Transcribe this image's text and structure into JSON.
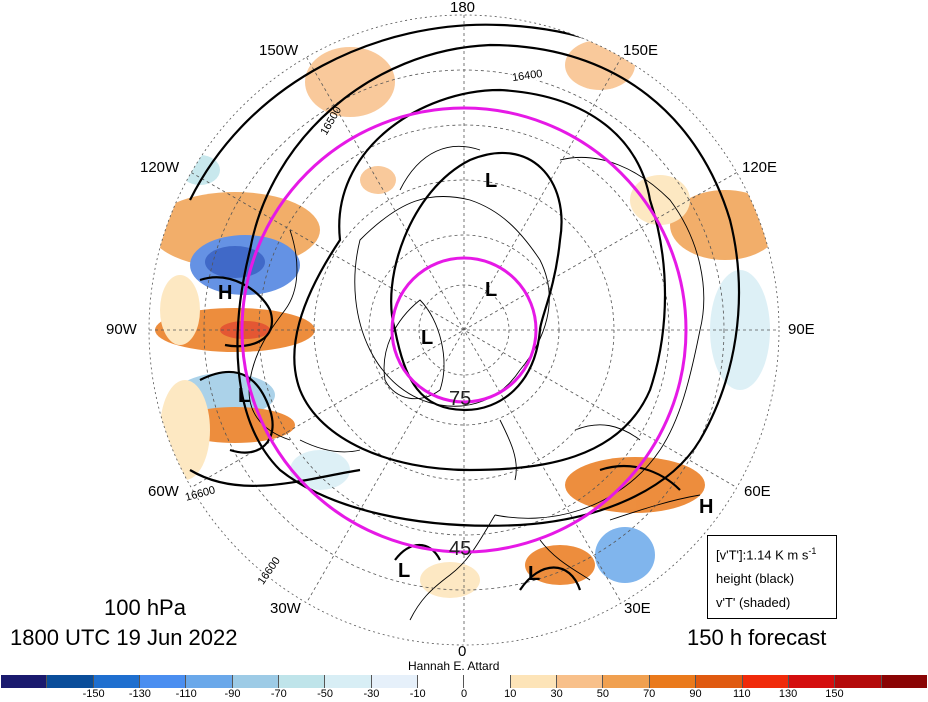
{
  "longitude_labels": [
    {
      "text": "180"
    },
    {
      "text": "150W"
    },
    {
      "text": "150E"
    },
    {
      "text": "120W"
    },
    {
      "text": "120E"
    },
    {
      "text": "90W"
    },
    {
      "text": "90E"
    },
    {
      "text": "60W"
    },
    {
      "text": "60E"
    },
    {
      "text": "30W"
    },
    {
      "text": "30E"
    },
    {
      "text": "0"
    }
  ],
  "latitude_labels": [
    "75",
    "45"
  ],
  "contour_labels": [
    "16400",
    "16500",
    "16600",
    "16600"
  ],
  "pressure_centers": [
    "L",
    "L",
    "L",
    "H",
    "L",
    "H",
    "L",
    "L"
  ],
  "title": {
    "level": "100 hPa",
    "datetime": "1800 UTC 19 Jun 2022",
    "forecast": "150 h forecast",
    "credit": "Hannah E. Attard"
  },
  "legend": {
    "line1": "[v'T']:1.14 K m s",
    "line1_sup": "-1",
    "line2": "height (black)",
    "line3": "v'T' (shaded)"
  },
  "colorbar": {
    "colors": [
      "#1a1a6e",
      "#0a4d9a",
      "#1f6fcf",
      "#4a8ef0",
      "#6aa8ea",
      "#9dcbe6",
      "#bfe4ea",
      "#d8eef5",
      "#e6f0fa",
      "#ffffff",
      "#ffffff",
      "#fde4b8",
      "#f8c08a",
      "#f0a050",
      "#ea7a1c",
      "#e05a10",
      "#f02a0a",
      "#d40e0e",
      "#b40a0a",
      "#8a0404"
    ],
    "ticks": [
      "-150",
      "-130",
      "-110",
      "-90",
      "-70",
      "-50",
      "-30",
      "-10",
      "0",
      "10",
      "30",
      "50",
      "70",
      "90",
      "110",
      "130",
      "150"
    ]
  }
}
